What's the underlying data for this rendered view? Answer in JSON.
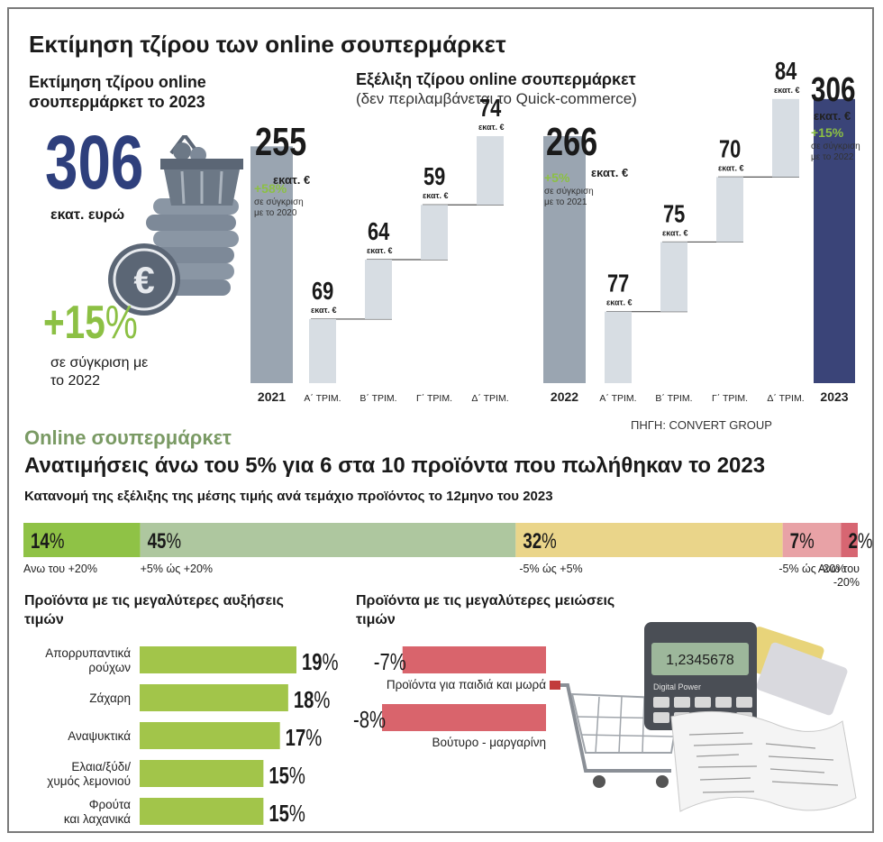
{
  "main_title": "Εκτίμηση τζίρου των online σουπερμάρκετ",
  "left_panel": {
    "heading": "Εκτίμηση τζίρου online σουπερμάρκετ το 2023",
    "big_value": "306",
    "big_unit": "εκατ. ευρώ",
    "change": "+15",
    "change_pct_sign": "%",
    "change_note": "σε σύγκριση με το 2022",
    "icon_names": [
      "shopping-basket-icon",
      "euro-coin-icon"
    ]
  },
  "right_heading": "Εξέλιξη τζίρου online σουπερμάρκετ",
  "right_subheading": "(δεν περιλαμβάνεται το Quick-commerce)",
  "source": "ΠΗΓΗ: CONVERT GROUP",
  "chart_data": [
    {
      "type": "bar",
      "subtype": "waterfall",
      "categories": [
        "2021",
        "Α΄ ΤΡΙΜ.",
        "Β΄ ΤΡΙΜ.",
        "Γ΄ ΤΡΙΜ.",
        "Δ΄ ΤΡΙΜ.",
        "2022",
        "Α΄ ΤΡΙΜ.",
        "Β΄ ΤΡΙΜ.",
        "Γ΄ ΤΡΙΜ.",
        "Δ΄ ΤΡΙΜ.",
        "2023"
      ],
      "values": [
        255,
        69,
        64,
        59,
        74,
        266,
        77,
        75,
        70,
        84,
        306
      ],
      "value_labels": [
        "255",
        "69",
        "64",
        "59",
        "74",
        "266",
        "77",
        "75",
        "70",
        "84",
        "306"
      ],
      "unit_label": "εκατ. €",
      "bar_kinds": [
        "total",
        "step",
        "step",
        "step",
        "step",
        "total",
        "step",
        "step",
        "step",
        "step",
        "total"
      ],
      "annotations": [
        {
          "category_index": 0,
          "change": "+58%",
          "note": "σε σύγκριση με το 2020"
        },
        {
          "category_index": 5,
          "change": "+5%",
          "note": "σε σύγκριση με το 2021"
        },
        {
          "category_index": 10,
          "change": "+15%",
          "note": "σε σύγκριση με το 2022"
        }
      ],
      "colors": {
        "total_2021": "#9aa5b1",
        "total_2022": "#9aa5b1",
        "total_2023": "#3a4478",
        "step": "#d7dde3"
      }
    },
    {
      "type": "bar",
      "subtype": "stacked-100",
      "title": "Κατανομή της εξέλιξης της μέσης τιμής ανά τεμάχιο προϊόντος το 12μηνο του 2023",
      "series": [
        {
          "name": "Ανω του +20%",
          "value": 14,
          "color": "#8fc246"
        },
        {
          "name": "+5% ώς +20%",
          "value": 45,
          "color": "#aec79f"
        },
        {
          "name": "-5% ώς +5%",
          "value": 32,
          "color": "#ead58a"
        },
        {
          "name": "-5% ώς -20%",
          "value": 7,
          "color": "#e8a2a6"
        },
        {
          "name": "Ανω του -20%",
          "value": 2,
          "color": "#d76672"
        }
      ],
      "value_suffix": "%"
    },
    {
      "type": "bar",
      "orientation": "horizontal",
      "title": "Προϊόντα με τις μεγαλύτερες αυξήσεις τιμών",
      "categories": [
        "Απορρυπαντικά ρούχων",
        "Ζάχαρη",
        "Αναψυκτικά",
        "Ελαια/ξύδι/ χυμός λεμονιού",
        "Φρούτα και λαχανικά"
      ],
      "values": [
        19,
        18,
        17,
        15,
        15
      ],
      "value_labels": [
        "19%",
        "18%",
        "17%",
        "15%",
        "15%"
      ],
      "color": "#a2c54a"
    },
    {
      "type": "bar",
      "orientation": "horizontal",
      "title": "Προϊόντα με τις μεγαλύτερες μειώσεις τιμών",
      "categories": [
        "Προϊόντα για παιδιά και μωρά",
        "Βούτυρο - μαργαρίνη"
      ],
      "values": [
        -7,
        -8
      ],
      "value_labels": [
        "-7%",
        "-8%"
      ],
      "color": "#d9646c"
    }
  ],
  "section2": {
    "kicker": "Online σουπερμάρκετ",
    "headline": "Ανατιμήσεις άνω του 5% για 6 στα 10 προϊόντα που πωλήθηκαν το 2023",
    "subtitle": "Κατανομή της εξέλιξης της μέσης τιμής ανά τεμάχιο προϊόντος το 12μηνο του 2023",
    "incr_title": "Προϊόντα με τις μεγαλύτερες αυξήσεις τιμών",
    "decr_title": "Προϊόντα με τις μεγαλύτερες μειώσεις τιμών",
    "incr_label_lines": [
      [
        "Απορρυπαντικά",
        "ρούχων"
      ],
      [
        "Ζάχαρη"
      ],
      [
        "Αναψυκτικά"
      ],
      [
        "Ελαια/ξύδι/",
        "χυμός λεμονιού"
      ],
      [
        "Φρούτα",
        "και λαχανικά"
      ]
    ],
    "stack_label_lines": [
      [
        "Ανω του +20%"
      ],
      [
        "+5% ώς +20%"
      ],
      [
        "-5% ώς +5%"
      ],
      [
        "-5% ώς -20%"
      ],
      [
        "Ανω του",
        "-20%"
      ]
    ],
    "calculator_display": "1,2345678",
    "calculator_brand": "Digital Power"
  }
}
